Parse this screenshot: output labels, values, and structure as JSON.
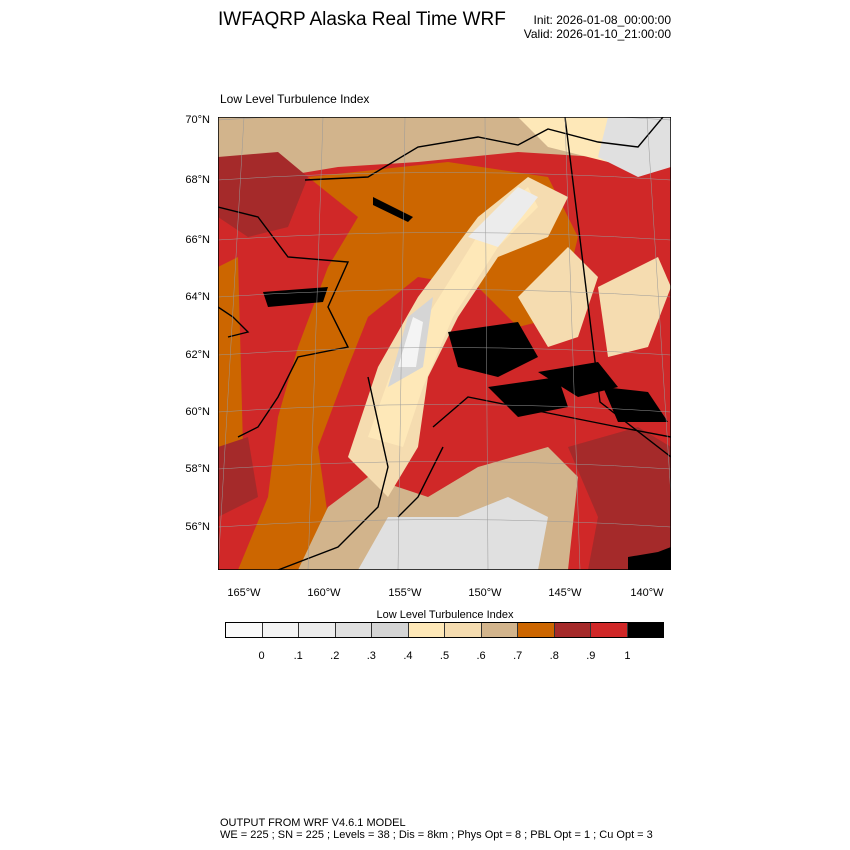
{
  "header": {
    "title": "IWFAQRP Alaska Real Time WRF",
    "init": "Init: 2026-01-08_00:00:00",
    "valid": "Valid: 2026-01-10_21:00:00"
  },
  "map": {
    "subtitle": "Low Level Turbulence Index",
    "lat_labels": [
      "70°N",
      "68°N",
      "66°N",
      "64°N",
      "62°N",
      "60°N",
      "58°N",
      "56°N"
    ],
    "lon_labels": [
      "165°W",
      "160°W",
      "155°W",
      "150°W",
      "145°W",
      "140°W"
    ]
  },
  "colorbar": {
    "title": "Low Level Turbulence Index",
    "colors": [
      "#fafafa",
      "#f4f4f4",
      "#ececec",
      "#e0e0e0",
      "#d5d5d5",
      "#fee8b8",
      "#f5dcb0",
      "#d2b48c",
      "#cc6600",
      "#a52a2a",
      "#d02828",
      "#000000"
    ],
    "labels": [
      "0",
      ".1",
      ".2",
      ".3",
      ".4",
      ".5",
      ".6",
      ".7",
      ".8",
      ".9",
      "1"
    ]
  },
  "footer": {
    "line1": "OUTPUT FROM WRF V4.6.1 MODEL",
    "line2": "WE = 225 ; SN = 225 ; Levels = 38 ; Dis = 8km ; Phys Opt = 8 ; PBL Opt = 1 ; Cu Opt = 3"
  }
}
